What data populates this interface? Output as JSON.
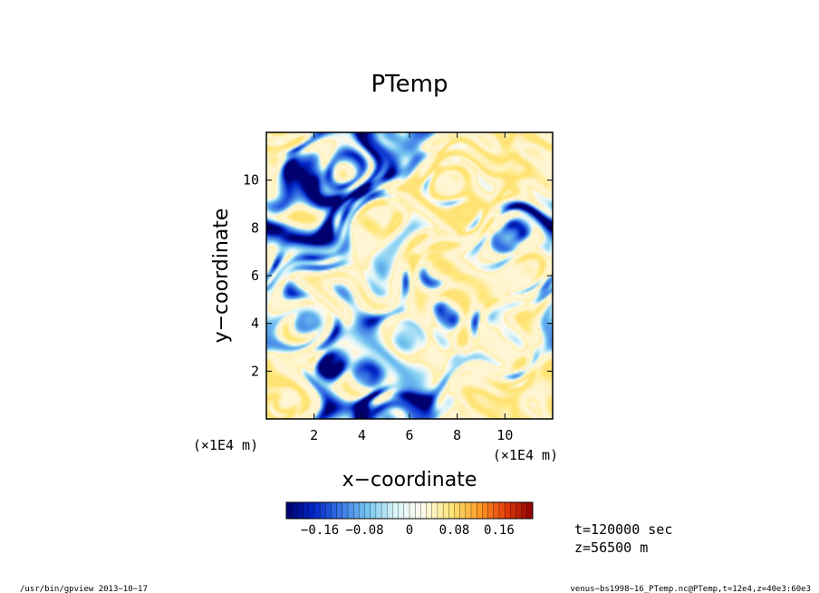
{
  "chart_data": {
    "type": "heatmap",
    "title": "PTemp",
    "xlabel": "x−coordinate",
    "ylabel": "y−coordinate",
    "x_units": "(×1E4 m)",
    "y_units": "(×1E4 m)",
    "xlim": [
      0,
      12
    ],
    "ylim": [
      0,
      12
    ],
    "x_ticks": [
      2,
      4,
      6,
      8,
      10
    ],
    "y_ticks": [
      2,
      4,
      6,
      8,
      10
    ],
    "x_tick_labels": [
      "2",
      "4",
      "6",
      "8",
      "10"
    ],
    "y_tick_labels": [
      "2",
      "4",
      "6",
      "8",
      "10"
    ],
    "colorbar": {
      "min": -0.22,
      "max": 0.22,
      "tick_values": [
        -0.16,
        -0.08,
        0,
        0.08,
        0.16
      ],
      "tick_labels": [
        "−0.16",
        "−0.08",
        "0",
        "0.08",
        "0.16"
      ],
      "colors": [
        "#00006e",
        "#0026c8",
        "#3c78e6",
        "#78c8f0",
        "#dcf5fa",
        "#fffaeb",
        "#ffe678",
        "#ffa028",
        "#e63c0a",
        "#8c0000"
      ]
    },
    "field": "rendered as an unlabeled turbulent temperature-perturbation field; individual grid values are not printed",
    "grid": false,
    "legend_position": "bottom"
  },
  "annotations": {
    "time": "t=120000 sec",
    "level": "z=56500 m"
  },
  "footer": {
    "left": "/usr/bin/gpview   2013−10−17",
    "right": "venus−bs1998−16_PTemp.nc@PTemp,t=12e4,z=40e3:60e3"
  }
}
